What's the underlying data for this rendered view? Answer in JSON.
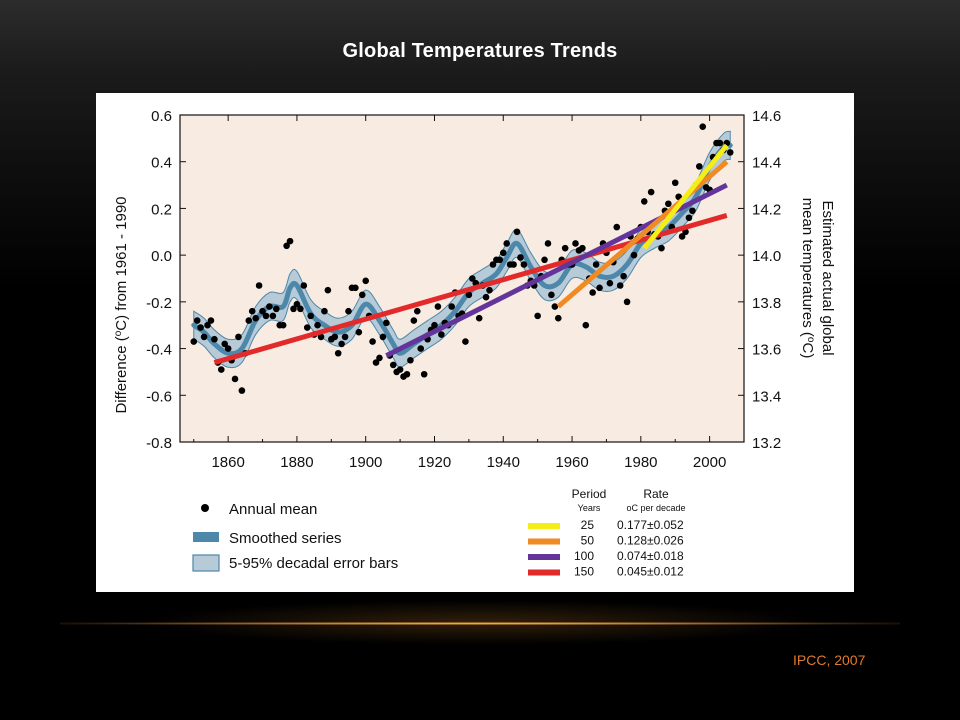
{
  "slide": {
    "title": "Global Temperatures Trends",
    "source": "IPCC, 2007"
  },
  "colors": {
    "plot_background": "#f8ece2",
    "band_fill": "#b7cad7",
    "band_stroke": "#4d87a9",
    "smoothed": "#4d87a9",
    "dots": "#000000",
    "trend_25": "#f5ee16",
    "trend_50": "#f08a23",
    "trend_100": "#63359a",
    "trend_150": "#e32a2a",
    "credit_text": "#e07a2c"
  },
  "chart_data": {
    "type": "scatter",
    "xlabel": "",
    "ylabel": "Difference (oC) from 1961 - 1990",
    "y2label": "Estimated actual global mean temperatures (oC)",
    "xlim": [
      1846,
      2010
    ],
    "ylim": [
      -0.8,
      0.6
    ],
    "y2lim": [
      13.2,
      14.6
    ],
    "grid": false,
    "xticks": [
      1860,
      1880,
      1900,
      1920,
      1940,
      1960,
      1980,
      2000
    ],
    "yticks": [
      -0.8,
      -0.6,
      -0.4,
      -0.2,
      0.0,
      0.2,
      0.4,
      0.6
    ],
    "yticks_labels": [
      "-0.8",
      "-0.6",
      "-0.4",
      "-0.2",
      "0.0",
      "0.2",
      "0.4",
      "0.6"
    ],
    "y2ticks": [
      13.2,
      13.4,
      13.6,
      13.8,
      14.0,
      14.2,
      14.4,
      14.6
    ],
    "y2ticks_labels": [
      "13.2",
      "13.4",
      "13.6",
      "13.8",
      "14.0",
      "14.2",
      "14.4",
      "14.6"
    ],
    "annual_mean": {
      "x": [
        1850,
        1851,
        1852,
        1853,
        1854,
        1855,
        1856,
        1857,
        1858,
        1859,
        1860,
        1861,
        1862,
        1863,
        1864,
        1865,
        1866,
        1867,
        1868,
        1869,
        1870,
        1871,
        1872,
        1873,
        1874,
        1875,
        1876,
        1877,
        1878,
        1879,
        1880,
        1881,
        1882,
        1883,
        1884,
        1885,
        1886,
        1887,
        1888,
        1889,
        1890,
        1891,
        1892,
        1893,
        1894,
        1895,
        1896,
        1897,
        1898,
        1899,
        1900,
        1901,
        1902,
        1903,
        1904,
        1905,
        1906,
        1907,
        1908,
        1909,
        1910,
        1911,
        1912,
        1913,
        1914,
        1915,
        1916,
        1917,
        1918,
        1919,
        1920,
        1921,
        1922,
        1923,
        1924,
        1925,
        1926,
        1927,
        1928,
        1929,
        1930,
        1931,
        1932,
        1933,
        1934,
        1935,
        1936,
        1937,
        1938,
        1939,
        1940,
        1941,
        1942,
        1943,
        1944,
        1945,
        1946,
        1947,
        1948,
        1949,
        1950,
        1951,
        1952,
        1953,
        1954,
        1955,
        1956,
        1957,
        1958,
        1959,
        1960,
        1961,
        1962,
        1963,
        1964,
        1965,
        1966,
        1967,
        1968,
        1969,
        1970,
        1971,
        1972,
        1973,
        1974,
        1975,
        1976,
        1977,
        1978,
        1979,
        1980,
        1981,
        1982,
        1983,
        1984,
        1985,
        1986,
        1987,
        1988,
        1989,
        1990,
        1991,
        1992,
        1993,
        1994,
        1995,
        1996,
        1997,
        1998,
        1999,
        2000,
        2001,
        2002,
        2003,
        2004,
        2005,
        2006
      ],
      "y": [
        -0.37,
        -0.28,
        -0.31,
        -0.35,
        -0.3,
        -0.28,
        -0.36,
        -0.46,
        -0.49,
        -0.38,
        -0.4,
        -0.45,
        -0.53,
        -0.35,
        -0.58,
        -0.42,
        -0.28,
        -0.24,
        -0.27,
        -0.13,
        -0.24,
        -0.26,
        -0.22,
        -0.26,
        -0.23,
        -0.3,
        -0.3,
        0.04,
        0.06,
        -0.23,
        -0.21,
        -0.23,
        -0.13,
        -0.31,
        -0.26,
        -0.34,
        -0.3,
        -0.35,
        -0.24,
        -0.15,
        -0.36,
        -0.35,
        -0.42,
        -0.38,
        -0.35,
        -0.24,
        -0.14,
        -0.14,
        -0.33,
        -0.17,
        -0.11,
        -0.26,
        -0.37,
        -0.46,
        -0.44,
        -0.35,
        -0.29,
        -0.43,
        -0.47,
        -0.5,
        -0.49,
        -0.52,
        -0.51,
        -0.45,
        -0.28,
        -0.24,
        -0.4,
        -0.51,
        -0.36,
        -0.32,
        -0.3,
        -0.22,
        -0.34,
        -0.29,
        -0.3,
        -0.22,
        -0.16,
        -0.26,
        -0.25,
        -0.37,
        -0.17,
        -0.1,
        -0.12,
        -0.27,
        -0.13,
        -0.18,
        -0.15,
        -0.04,
        -0.02,
        -0.02,
        0.01,
        0.05,
        -0.04,
        -0.04,
        0.1,
        -0.01,
        -0.04,
        -0.13,
        -0.11,
        -0.13,
        -0.26,
        -0.09,
        -0.02,
        0.05,
        -0.17,
        -0.22,
        -0.27,
        -0.02,
        0.03,
        -0.04,
        -0.04,
        0.05,
        0.02,
        0.03,
        -0.3,
        -0.1,
        -0.16,
        -0.04,
        -0.14,
        0.05,
        0.01,
        -0.12,
        -0.03,
        0.12,
        -0.13,
        -0.09,
        -0.2,
        0.08,
        0.0,
        0.07,
        0.12,
        0.23,
        0.1,
        0.27,
        0.09,
        0.08,
        0.03,
        0.19,
        0.22,
        0.12,
        0.31,
        0.25,
        0.08,
        0.1,
        0.16,
        0.19,
        0.3,
        0.38,
        0.55,
        0.29,
        0.28,
        0.42,
        0.48,
        0.48,
        0.45,
        0.48,
        0.44
      ],
      "label": "Annual mean"
    },
    "smoothed_series": {
      "x": [
        1850,
        1853,
        1856,
        1860,
        1864,
        1868,
        1872,
        1876,
        1878,
        1880,
        1884,
        1888,
        1892,
        1896,
        1900,
        1904,
        1908,
        1910,
        1914,
        1918,
        1922,
        1926,
        1930,
        1934,
        1938,
        1941,
        1944,
        1948,
        1952,
        1956,
        1960,
        1964,
        1968,
        1972,
        1976,
        1980,
        1984,
        1988,
        1992,
        1996,
        2000,
        2004,
        2006
      ],
      "y": [
        -0.3,
        -0.33,
        -0.38,
        -0.42,
        -0.4,
        -0.28,
        -0.22,
        -0.22,
        -0.14,
        -0.13,
        -0.25,
        -0.3,
        -0.33,
        -0.3,
        -0.21,
        -0.28,
        -0.38,
        -0.42,
        -0.38,
        -0.34,
        -0.3,
        -0.24,
        -0.16,
        -0.12,
        -0.08,
        -0.01,
        0.05,
        -0.05,
        -0.13,
        -0.12,
        -0.04,
        -0.05,
        -0.09,
        -0.09,
        -0.04,
        0.05,
        0.09,
        0.12,
        0.18,
        0.25,
        0.38,
        0.46,
        0.47
      ],
      "label": "Smoothed series"
    },
    "error_band": {
      "half_width": 0.06,
      "label": "5-95% decadal error bars"
    },
    "trends": [
      {
        "period": "25",
        "rate": "0.177±0.052",
        "color": "#f5ee16",
        "x": [
          1981,
          2005
        ],
        "y": [
          0.03,
          0.47
        ]
      },
      {
        "period": "50",
        "rate": "0.128±0.026",
        "color": "#f08a23",
        "x": [
          1956,
          2005
        ],
        "y": [
          -0.22,
          0.4
        ]
      },
      {
        "period": "100",
        "rate": "0.074±0.018",
        "color": "#63359a",
        "x": [
          1906,
          2005
        ],
        "y": [
          -0.43,
          0.3
        ]
      },
      {
        "period": "150",
        "rate": "0.045±0.012",
        "color": "#e32a2a",
        "x": [
          1856,
          2005
        ],
        "y": [
          -0.46,
          0.17
        ]
      }
    ],
    "table_headers": {
      "period": "Period",
      "period_unit": "Years",
      "rate": "Rate",
      "rate_unit": "oC  per decade"
    }
  }
}
